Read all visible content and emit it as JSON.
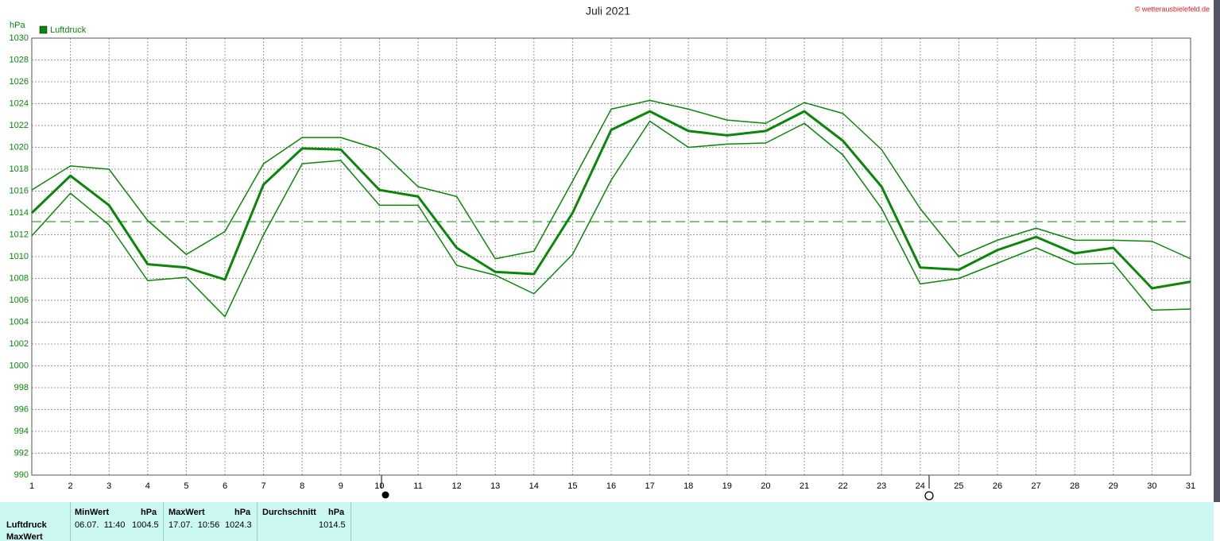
{
  "chart_data": {
    "type": "line",
    "title": "Juli 2021",
    "y_label": "hPa",
    "credit": "© wetterausbielefeld.de",
    "x": [
      1,
      2,
      3,
      4,
      5,
      6,
      7,
      8,
      9,
      10,
      11,
      12,
      13,
      14,
      15,
      16,
      17,
      18,
      19,
      20,
      21,
      22,
      23,
      24,
      25,
      26,
      27,
      28,
      29,
      30,
      31
    ],
    "xlim": [
      1,
      31
    ],
    "xticks": [
      1,
      2,
      3,
      4,
      5,
      6,
      7,
      8,
      9,
      10,
      11,
      12,
      13,
      14,
      15,
      16,
      17,
      18,
      19,
      20,
      21,
      22,
      23,
      24,
      25,
      26,
      27,
      28,
      29,
      30,
      31
    ],
    "ylim": [
      990,
      1030
    ],
    "yticks": [
      990,
      992,
      994,
      996,
      998,
      1000,
      1002,
      1004,
      1006,
      1008,
      1010,
      1012,
      1014,
      1016,
      1018,
      1020,
      1022,
      1024,
      1026,
      1028,
      1030
    ],
    "grid": true,
    "average_line": 1013.2,
    "series": [
      {
        "name": "Luftdruck",
        "color": "#0a860a",
        "width": 3,
        "values": [
          1014.0,
          1017.4,
          1014.7,
          1009.3,
          1009.0,
          1007.9,
          1016.6,
          1019.9,
          1019.8,
          1016.1,
          1015.5,
          1010.8,
          1008.6,
          1008.4,
          1014.0,
          1021.6,
          1023.3,
          1021.5,
          1021.1,
          1021.5,
          1023.3,
          1020.6,
          1016.4,
          1009.0,
          1008.8,
          1010.6,
          1011.8,
          1010.3,
          1010.8,
          1007.1,
          1007.7
        ]
      },
      {
        "color": "#0a860a",
        "width": 1.5,
        "values": [
          1016.1,
          1018.3,
          1018.0,
          1013.3,
          1010.2,
          1012.3,
          1018.5,
          1020.9,
          1020.9,
          1019.8,
          1016.4,
          1015.5,
          1009.8,
          1010.5,
          1016.9,
          1023.5,
          1024.3,
          1023.5,
          1022.5,
          1022.2,
          1024.1,
          1023.1,
          1019.8,
          1014.4,
          1010.0,
          1011.5,
          1012.6,
          1011.5,
          1011.5,
          1011.4,
          1009.8
        ]
      },
      {
        "color": "#0a860a",
        "width": 1.5,
        "values": [
          1011.9,
          1015.8,
          1012.9,
          1007.8,
          1008.1,
          1004.5,
          1012.0,
          1018.5,
          1018.8,
          1014.7,
          1014.7,
          1009.2,
          1008.3,
          1006.6,
          1010.2,
          1017.0,
          1022.4,
          1020.0,
          1020.3,
          1020.4,
          1022.2,
          1019.3,
          1014.4,
          1007.5,
          1008.0,
          1009.4,
          1010.8,
          1009.3,
          1009.4,
          1005.1,
          1005.2
        ]
      }
    ]
  },
  "table": {
    "columns": [
      {
        "name": "MinWert",
        "unit": "hPa"
      },
      {
        "name": "MaxWert",
        "unit": "hPa"
      },
      {
        "name": "Durchschnitt",
        "unit": "hPa"
      }
    ],
    "rows": [
      {
        "label": "Luftdruck",
        "cells": [
          {
            "time": "06.07.  11:40",
            "value": 1004.5
          },
          {
            "time": "17.07.  10:56",
            "value": 1024.3
          },
          {
            "value": 1014.5
          }
        ]
      },
      {
        "label": "MaxWert"
      }
    ]
  }
}
